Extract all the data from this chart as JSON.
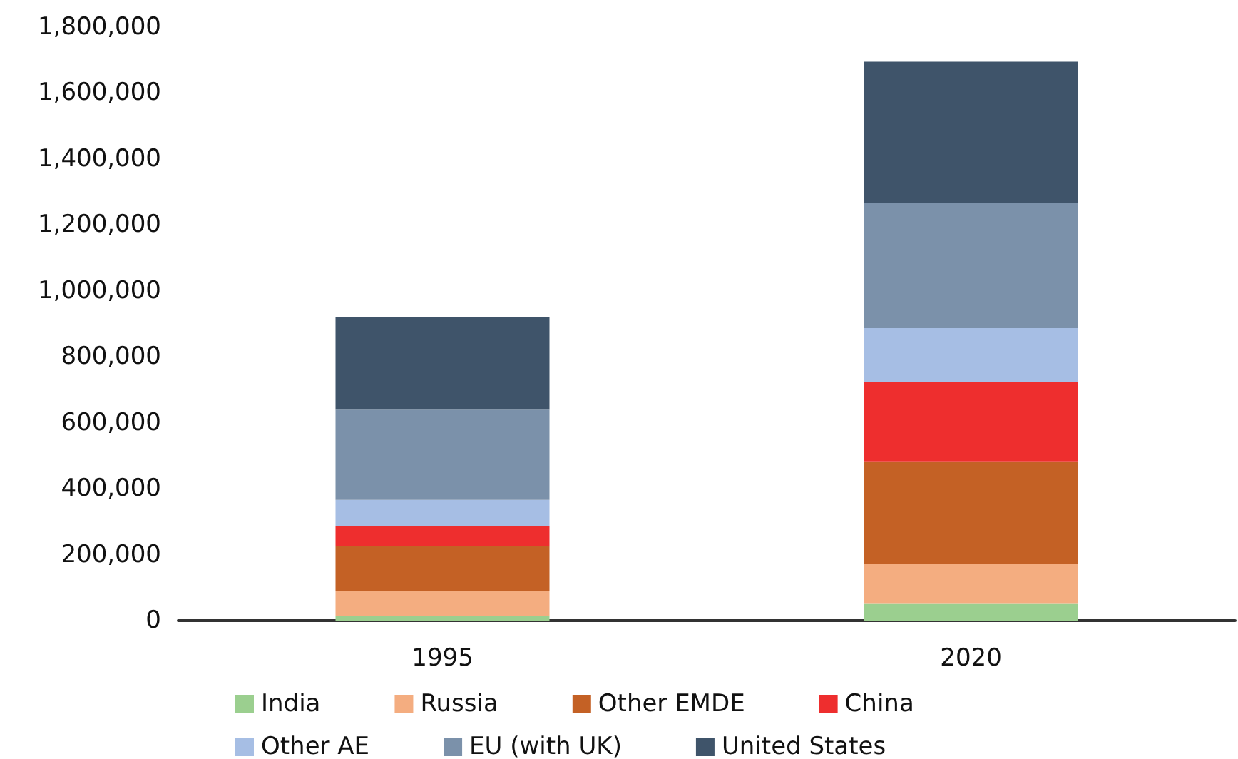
{
  "chart_data": {
    "type": "bar",
    "stacked": true,
    "categories": [
      "1995",
      "2020"
    ],
    "series": [
      {
        "name": "India",
        "color": "#9bcf8f",
        "values": [
          14000,
          51000
        ]
      },
      {
        "name": "Russia",
        "color": "#f4ad80",
        "values": [
          77000,
          122000
        ]
      },
      {
        "name": "Other EMDE",
        "color": "#c46125",
        "values": [
          134000,
          310000
        ]
      },
      {
        "name": "China",
        "color": "#ee2e2e",
        "values": [
          61000,
          241000
        ]
      },
      {
        "name": "Other AE",
        "color": "#a6bee4",
        "values": [
          80000,
          163000
        ]
      },
      {
        "name": "EU (with UK)",
        "color": "#7b91aa",
        "values": [
          274000,
          380000
        ]
      },
      {
        "name": "United States",
        "color": "#3f546a",
        "values": [
          280000,
          428000
        ]
      }
    ],
    "ylim": [
      0,
      1800000
    ],
    "yticks": [
      0,
      {
        "value": 200000,
        "label": "200,000"
      },
      {
        "value": 400000,
        "label": "400,000"
      },
      {
        "value": 600000,
        "label": "600,000"
      },
      {
        "value": 800000,
        "label": "800,000"
      },
      {
        "value": 1000000,
        "label": "1,000,000"
      },
      {
        "value": 1200000,
        "label": "1,200,000"
      },
      {
        "value": 1400000,
        "label": "1,400,000"
      },
      {
        "value": 1600000,
        "label": "1,600,000"
      },
      {
        "value": 1800000,
        "label": "1,800,000"
      }
    ],
    "grid": false,
    "legend": "bottom"
  }
}
